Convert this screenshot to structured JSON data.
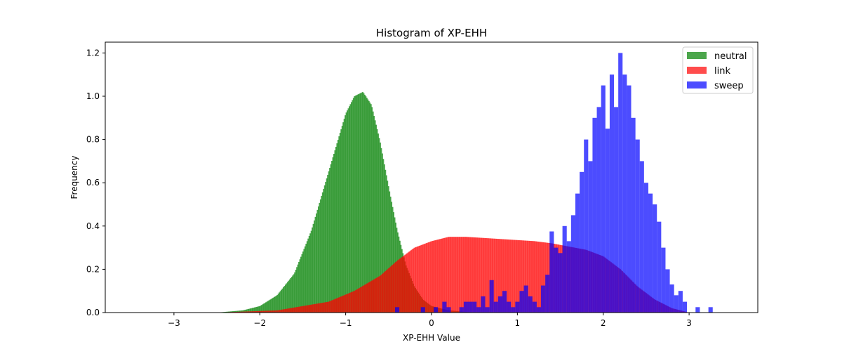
{
  "chart_data": {
    "type": "histogram",
    "title": "Histogram of XP-EHH",
    "xlabel": "XP-EHH Value",
    "ylabel": "Frequency",
    "xlim": [
      -3.8,
      3.8
    ],
    "ylim": [
      0,
      1.25
    ],
    "xticks": [
      -3,
      -2,
      -1,
      0,
      1,
      2,
      3
    ],
    "xtick_labels": [
      "−3",
      "−2",
      "−1",
      "0",
      "1",
      "2",
      "3"
    ],
    "yticks": [
      0.0,
      0.2,
      0.4,
      0.6,
      0.8,
      1.0,
      1.2
    ],
    "ytick_labels": [
      "0.0",
      "0.2",
      "0.4",
      "0.6",
      "0.8",
      "1.0",
      "1.2"
    ],
    "alpha": 0.7,
    "legend_position": "top-right",
    "series": [
      {
        "name": "neutral",
        "color": "#008000",
        "profile": {
          "x": [
            -2.5,
            -2.2,
            -2.0,
            -1.8,
            -1.6,
            -1.4,
            -1.2,
            -1.0,
            -0.9,
            -0.8,
            -0.7,
            -0.6,
            -0.5,
            -0.4,
            -0.3,
            -0.2,
            -0.1,
            0.0,
            0.2,
            0.5
          ],
          "y": [
            0.0,
            0.01,
            0.03,
            0.08,
            0.18,
            0.38,
            0.65,
            0.92,
            1.0,
            1.02,
            0.96,
            0.79,
            0.58,
            0.38,
            0.22,
            0.12,
            0.06,
            0.03,
            0.01,
            0.0
          ]
        }
      },
      {
        "name": "link",
        "color": "#ff0000",
        "profile": {
          "x": [
            -2.5,
            -1.8,
            -1.2,
            -0.9,
            -0.6,
            -0.4,
            -0.2,
            0.0,
            0.2,
            0.4,
            0.6,
            0.8,
            1.0,
            1.2,
            1.4,
            1.6,
            1.8,
            2.0,
            2.2,
            2.4,
            2.6,
            2.8,
            3.0
          ],
          "y": [
            0.0,
            0.01,
            0.05,
            0.1,
            0.17,
            0.24,
            0.3,
            0.33,
            0.35,
            0.35,
            0.345,
            0.34,
            0.335,
            0.33,
            0.32,
            0.305,
            0.29,
            0.26,
            0.2,
            0.12,
            0.06,
            0.02,
            0.0
          ]
        }
      },
      {
        "name": "sweep",
        "color": "#0000ff",
        "bins": [
          [
            -0.4,
            0.025
          ],
          [
            -0.1,
            0.025
          ],
          [
            0.05,
            0.025
          ],
          [
            0.15,
            0.05
          ],
          [
            0.2,
            0.025
          ],
          [
            0.35,
            0.025
          ],
          [
            0.4,
            0.05
          ],
          [
            0.45,
            0.05
          ],
          [
            0.5,
            0.05
          ],
          [
            0.55,
            0.025
          ],
          [
            0.6,
            0.075
          ],
          [
            0.65,
            0.025
          ],
          [
            0.7,
            0.15
          ],
          [
            0.75,
            0.05
          ],
          [
            0.8,
            0.075
          ],
          [
            0.85,
            0.1
          ],
          [
            0.9,
            0.05
          ],
          [
            0.95,
            0.025
          ],
          [
            1.0,
            0.05
          ],
          [
            1.05,
            0.1
          ],
          [
            1.1,
            0.125
          ],
          [
            1.15,
            0.075
          ],
          [
            1.2,
            0.05
          ],
          [
            1.25,
            0.025
          ],
          [
            1.3,
            0.125
          ],
          [
            1.35,
            0.175
          ],
          [
            1.4,
            0.375
          ],
          [
            1.45,
            0.3
          ],
          [
            1.5,
            0.275
          ],
          [
            1.55,
            0.4
          ],
          [
            1.6,
            0.33
          ],
          [
            1.65,
            0.45
          ],
          [
            1.7,
            0.55
          ],
          [
            1.75,
            0.65
          ],
          [
            1.8,
            0.8
          ],
          [
            1.85,
            0.7
          ],
          [
            1.9,
            0.9
          ],
          [
            1.95,
            0.95
          ],
          [
            2.0,
            1.05
          ],
          [
            2.05,
            0.85
          ],
          [
            2.1,
            1.1
          ],
          [
            2.15,
            0.95
          ],
          [
            2.2,
            1.2
          ],
          [
            2.25,
            1.1
          ],
          [
            2.3,
            1.05
          ],
          [
            2.35,
            0.9
          ],
          [
            2.4,
            0.8
          ],
          [
            2.45,
            0.7
          ],
          [
            2.5,
            0.6
          ],
          [
            2.55,
            0.55
          ],
          [
            2.6,
            0.5
          ],
          [
            2.65,
            0.42
          ],
          [
            2.7,
            0.3
          ],
          [
            2.75,
            0.2
          ],
          [
            2.8,
            0.13
          ],
          [
            2.85,
            0.08
          ],
          [
            2.9,
            0.1
          ],
          [
            2.95,
            0.05
          ],
          [
            3.1,
            0.025
          ],
          [
            3.25,
            0.025
          ]
        ]
      }
    ]
  }
}
